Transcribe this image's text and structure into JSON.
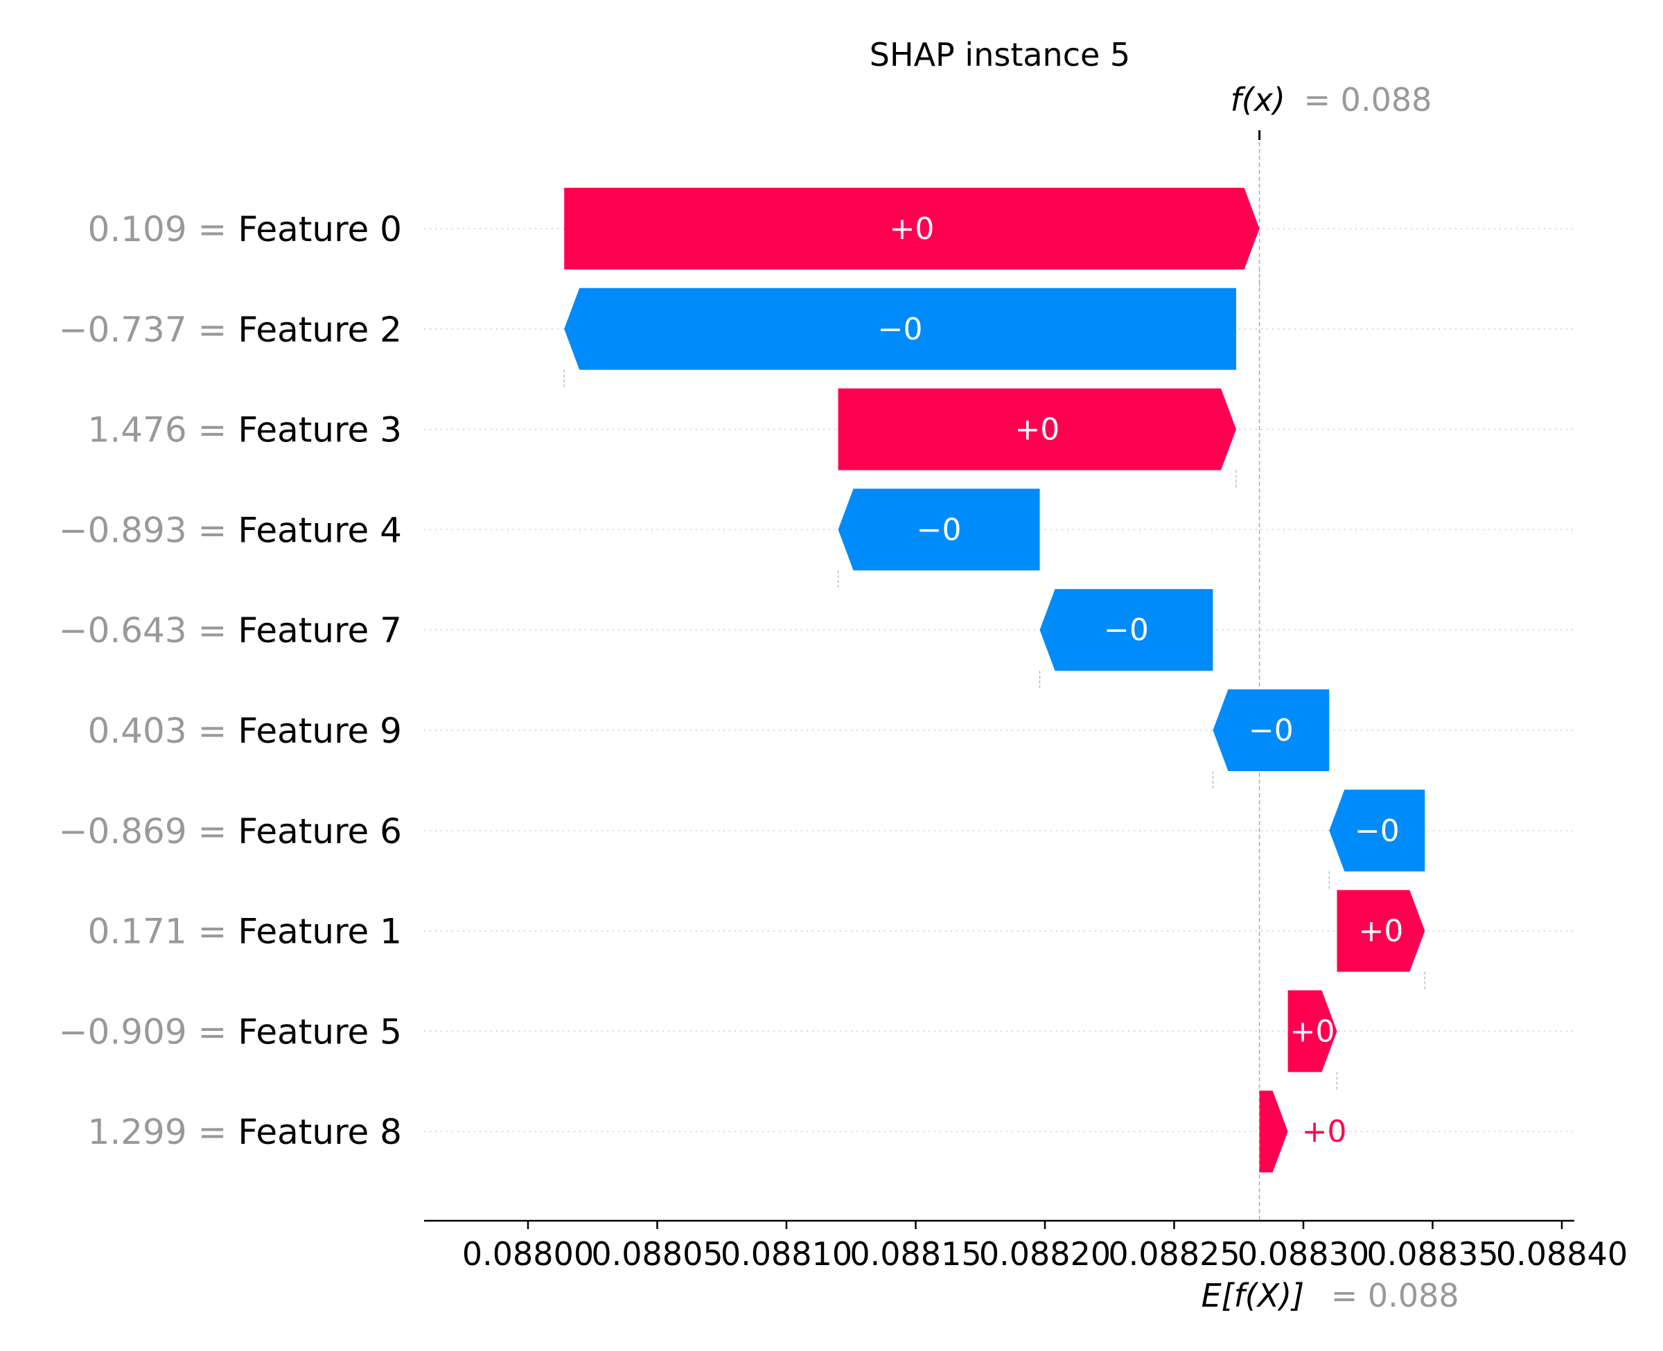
{
  "chart_data": {
    "type": "waterfall",
    "title": "SHAP instance 5",
    "fx_label": "f(x)",
    "fx_value_text": "= 0.088",
    "efx_label": "E[f(X)]",
    "efx_value_text": "= 0.088",
    "base_value": 0.088283,
    "output_value": 0.088283,
    "xlim": [
      0.08796,
      0.088405
    ],
    "xticks": [
      0.088,
      0.08805,
      0.0881,
      0.08815,
      0.0882,
      0.08825,
      0.0883,
      0.08835,
      0.0884
    ],
    "xtick_labels": [
      "0.08800",
      "0.08805",
      "0.08810",
      "0.08815",
      "0.08820",
      "0.08825",
      "0.08830",
      "0.08835",
      "0.08840"
    ],
    "features": [
      {
        "name": "Feature 0",
        "value_text": "0.109",
        "start": 0.088014,
        "end": 0.088283,
        "label": "+0",
        "sign": "positive"
      },
      {
        "name": "Feature 2",
        "value_text": "−0.737",
        "start": 0.088274,
        "end": 0.088014,
        "label": "−0",
        "sign": "negative"
      },
      {
        "name": "Feature 3",
        "value_text": "1.476",
        "start": 0.08812,
        "end": 0.088274,
        "label": "+0",
        "sign": "positive"
      },
      {
        "name": "Feature 4",
        "value_text": "−0.893",
        "start": 0.088198,
        "end": 0.08812,
        "label": "−0",
        "sign": "negative"
      },
      {
        "name": "Feature 7",
        "value_text": "−0.643",
        "start": 0.088265,
        "end": 0.088198,
        "label": "−0",
        "sign": "negative"
      },
      {
        "name": "Feature 9",
        "value_text": "0.403",
        "start": 0.08831,
        "end": 0.088265,
        "label": "−0",
        "sign": "negative"
      },
      {
        "name": "Feature 6",
        "value_text": "−0.869",
        "start": 0.088347,
        "end": 0.08831,
        "label": "−0",
        "sign": "negative"
      },
      {
        "name": "Feature 1",
        "value_text": "0.171",
        "start": 0.088313,
        "end": 0.088347,
        "label": "+0",
        "sign": "positive"
      },
      {
        "name": "Feature 5",
        "value_text": "−0.909",
        "start": 0.088294,
        "end": 0.088313,
        "label": "+0",
        "sign": "positive"
      },
      {
        "name": "Feature 8",
        "value_text": "1.299",
        "start": 0.088283,
        "end": 0.088294,
        "label": "+0",
        "sign": "positive"
      }
    ],
    "colors": {
      "positive": "#ff0051",
      "negative": "#008bfb",
      "muted_text": "#999999",
      "text": "#000000"
    }
  }
}
